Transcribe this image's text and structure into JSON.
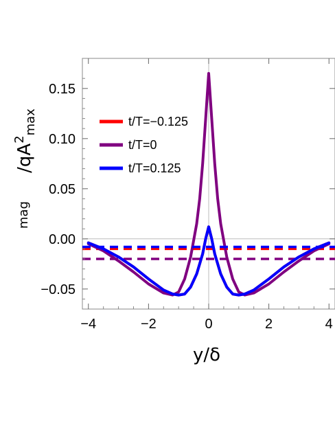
{
  "chart_data": {
    "type": "line",
    "title": "",
    "xlabel": "y/δ",
    "ylabel_parts": {
      "prefix": "/qA",
      "sup": "2",
      "sub": "max",
      "lower": "mag"
    },
    "xlim": [
      -4.2,
      4.2
    ],
    "ylim": [
      -0.07,
      0.18
    ],
    "xticks": [
      -4,
      -2,
      0,
      2,
      4
    ],
    "xtick_labels": [
      "−4",
      "−2",
      "0",
      "2",
      "4"
    ],
    "yticks": [
      -0.05,
      0.0,
      0.05,
      0.1,
      0.15
    ],
    "ytick_labels": [
      "−0.05",
      "0.00",
      "0.05",
      "0.10",
      "0.15"
    ],
    "legend_position": "upper-left",
    "series": [
      {
        "name": "t/T=−0.125",
        "color": "#ff0000",
        "x": [
          -4,
          -3.5,
          -3,
          -2.5,
          -2,
          -1.5,
          -1.2,
          -1.0,
          -0.8,
          -0.6,
          -0.4,
          -0.2,
          -0.1,
          0,
          0.1,
          0.2,
          0.4,
          0.6,
          0.8,
          1.0,
          1.2,
          1.5,
          2,
          2.5,
          3,
          3.5,
          4
        ],
        "y": [
          -0.004,
          -0.01,
          -0.018,
          -0.028,
          -0.04,
          -0.051,
          -0.055,
          -0.056,
          -0.055,
          -0.048,
          -0.035,
          -0.015,
          0.0,
          0.012,
          0.0,
          -0.015,
          -0.035,
          -0.048,
          -0.055,
          -0.056,
          -0.055,
          -0.051,
          -0.04,
          -0.028,
          -0.018,
          -0.01,
          -0.004
        ],
        "mean": -0.01
      },
      {
        "name": "t/T=0",
        "color": "#800080",
        "x": [
          -4,
          -3.5,
          -3,
          -2.5,
          -2,
          -1.5,
          -1.2,
          -1.0,
          -0.8,
          -0.6,
          -0.4,
          -0.3,
          -0.2,
          -0.1,
          0,
          0.1,
          0.2,
          0.3,
          0.4,
          0.6,
          0.8,
          1.0,
          1.2,
          1.5,
          2,
          2.5,
          3,
          3.5,
          4
        ],
        "y": [
          -0.005,
          -0.012,
          -0.022,
          -0.033,
          -0.045,
          -0.054,
          -0.056,
          -0.053,
          -0.04,
          -0.018,
          0.015,
          0.04,
          0.075,
          0.12,
          0.165,
          0.12,
          0.075,
          0.04,
          0.015,
          -0.018,
          -0.04,
          -0.053,
          -0.056,
          -0.054,
          -0.045,
          -0.033,
          -0.022,
          -0.012,
          -0.005
        ],
        "mean": -0.02
      },
      {
        "name": "t/T=0.125",
        "color": "#0000ff",
        "x": [
          -4,
          -3.5,
          -3,
          -2.5,
          -2,
          -1.5,
          -1.2,
          -1.0,
          -0.8,
          -0.6,
          -0.4,
          -0.2,
          -0.1,
          0,
          0.1,
          0.2,
          0.4,
          0.6,
          0.8,
          1.0,
          1.2,
          1.5,
          2,
          2.5,
          3,
          3.5,
          4
        ],
        "y": [
          -0.004,
          -0.01,
          -0.018,
          -0.028,
          -0.04,
          -0.051,
          -0.055,
          -0.056,
          -0.055,
          -0.048,
          -0.035,
          -0.015,
          0.0,
          0.012,
          0.0,
          -0.015,
          -0.035,
          -0.048,
          -0.055,
          -0.056,
          -0.055,
          -0.051,
          -0.04,
          -0.028,
          -0.018,
          -0.01,
          -0.004
        ],
        "mean": -0.008
      }
    ]
  }
}
